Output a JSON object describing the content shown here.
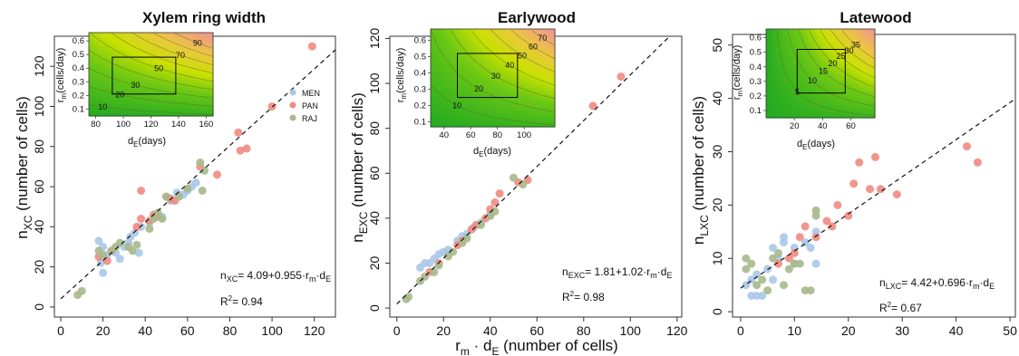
{
  "chart_data": [
    {
      "type": "scatter",
      "title": "Xylem ring width",
      "xlabel": "",
      "ylabel": "n_XC (number of cells)",
      "xlim": [
        -3,
        130
      ],
      "ylim": [
        -5,
        135
      ],
      "xticks": [
        0,
        20,
        40,
        60,
        80,
        100,
        120
      ],
      "yticks": [
        0,
        20,
        40,
        60,
        80,
        100,
        120
      ],
      "ylabel_main": "n",
      "ylabel_sub": "XC",
      "ylabel_rest": " (number of cells)",
      "fit": {
        "intercept": 4.09,
        "slope": 0.955
      },
      "equation": {
        "lhs": "n",
        "lhs_sub": "XC",
        "body": "= 4.09+0.955·r",
        "m": "m",
        "dot": "·d",
        "e": "E"
      },
      "r2": "= 0.94",
      "legend": [
        "MEN",
        "PAN",
        "RAJ"
      ],
      "legend_position": "inside-top-right",
      "series": [
        {
          "name": "MEN",
          "points": [
            [
              18,
              33
            ],
            [
              20,
              30
            ],
            [
              19,
              22
            ],
            [
              20,
              17
            ],
            [
              22,
              26
            ],
            [
              26,
              27
            ],
            [
              28,
              24
            ],
            [
              30,
              30
            ],
            [
              32,
              32
            ],
            [
              33,
              35
            ],
            [
              35,
              37
            ],
            [
              37,
              27
            ],
            [
              38,
              40
            ],
            [
              42,
              42
            ],
            [
              45,
              46
            ],
            [
              48,
              45
            ],
            [
              52,
              53
            ],
            [
              55,
              57
            ],
            [
              58,
              56
            ],
            [
              60,
              58
            ],
            [
              62,
              60
            ],
            [
              64,
              62
            ]
          ]
        },
        {
          "name": "PAN",
          "points": [
            [
              18,
              25
            ],
            [
              22,
              23
            ],
            [
              24,
              28
            ],
            [
              36,
              40
            ],
            [
              38,
              44
            ],
            [
              38,
              58
            ],
            [
              42,
              43
            ],
            [
              44,
              46
            ],
            [
              46,
              45
            ],
            [
              50,
              55
            ],
            [
              52,
              54
            ],
            [
              54,
              53
            ],
            [
              66,
              70
            ],
            [
              74,
              66
            ],
            [
              84,
              87
            ],
            [
              85,
              78
            ],
            [
              88,
              79
            ],
            [
              100,
              100
            ],
            [
              119,
              130
            ]
          ]
        },
        {
          "name": "RAJ",
          "points": [
            [
              8,
              6
            ],
            [
              10,
              8
            ],
            [
              18,
              28
            ],
            [
              20,
              26
            ],
            [
              24,
              28
            ],
            [
              26,
              30
            ],
            [
              28,
              32
            ],
            [
              32,
              30
            ],
            [
              34,
              28
            ],
            [
              36,
              31
            ],
            [
              42,
              39
            ],
            [
              44,
              44
            ],
            [
              46,
              47
            ],
            [
              48,
              44
            ],
            [
              50,
              55
            ],
            [
              56,
              55
            ],
            [
              60,
              59
            ],
            [
              66,
              72
            ],
            [
              67,
              58
            ],
            [
              68,
              68
            ]
          ]
        }
      ],
      "inset": {
        "xlabel_main": "d",
        "xlabel_sub": "E",
        "xlabel_rest": "(days)",
        "ylabel_main": "r",
        "ylabel_sub": "m",
        "ylabel_rest": "(cells/day)",
        "xlim": [
          75,
          165
        ],
        "ylim": [
          0.05,
          0.66
        ],
        "xticks": [
          80,
          100,
          120,
          140,
          160
        ],
        "yticks": [
          0.1,
          0.2,
          0.3,
          0.4,
          0.5,
          0.6
        ],
        "contours": [
          10,
          20,
          30,
          40,
          50,
          60,
          70,
          80,
          90
        ],
        "contour_labels": [
          "10",
          "20",
          "30",
          "50",
          "70",
          "90"
        ],
        "box": {
          "x": [
            92,
            138
          ],
          "y": [
            0.21,
            0.48
          ]
        }
      }
    },
    {
      "type": "scatter",
      "title": "Earlywood",
      "xlabel": "r_m · d_E (number of cells)",
      "ylabel": "n_EXC (number of cells)",
      "xlim": [
        -3,
        122
      ],
      "ylim": [
        -4,
        121
      ],
      "xticks": [
        0,
        20,
        40,
        60,
        80,
        100,
        120
      ],
      "yticks": [
        0,
        20,
        40,
        60,
        80,
        100,
        120
      ],
      "ylabel_main": "n",
      "ylabel_sub": "EXC",
      "ylabel_rest": " (number of cells)",
      "xlabel_main": "r",
      "xlabel_m": "m",
      "xlabel_mid": " · d",
      "xlabel_E": "E",
      "xlabel_rest": " (number of cells)",
      "fit": {
        "intercept": 1.81,
        "slope": 1.02
      },
      "equation": {
        "lhs": "n",
        "lhs_sub": "EXC",
        "body": "= 1.81+1.02·r",
        "m": "m",
        "dot": "·d",
        "e": "E"
      },
      "r2": "= 0.98",
      "series": [
        {
          "name": "MEN",
          "points": [
            [
              10,
              18
            ],
            [
              12,
              20
            ],
            [
              14,
              20
            ],
            [
              16,
              22
            ],
            [
              18,
              24
            ],
            [
              20,
              25
            ],
            [
              22,
              26
            ],
            [
              26,
              30
            ],
            [
              28,
              32
            ],
            [
              30,
              33
            ],
            [
              33,
              36
            ],
            [
              36,
              38
            ],
            [
              40,
              42
            ]
          ]
        },
        {
          "name": "PAN",
          "points": [
            [
              14,
              16
            ],
            [
              18,
              20
            ],
            [
              26,
              28
            ],
            [
              28,
              30
            ],
            [
              32,
              35
            ],
            [
              34,
              37
            ],
            [
              38,
              40
            ],
            [
              40,
              44
            ],
            [
              42,
              47
            ],
            [
              44,
              51
            ],
            [
              52,
              56
            ],
            [
              56,
              57
            ],
            [
              84,
              90
            ],
            [
              96,
              103
            ]
          ]
        },
        {
          "name": "RAJ",
          "points": [
            [
              4,
              4
            ],
            [
              5,
              5
            ],
            [
              10,
              12
            ],
            [
              12,
              14
            ],
            [
              16,
              16
            ],
            [
              18,
              19
            ],
            [
              22,
              23
            ],
            [
              24,
              25
            ],
            [
              28,
              29
            ],
            [
              30,
              31
            ],
            [
              36,
              37
            ],
            [
              40,
              41
            ],
            [
              42,
              43
            ],
            [
              50,
              58
            ],
            [
              54,
              55
            ]
          ]
        }
      ],
      "inset": {
        "xlabel_main": "d",
        "xlabel_sub": "E",
        "xlabel_rest": "(days)",
        "ylabel_main": "r",
        "ylabel_sub": "m",
        "ylabel_rest": "(cells/day)",
        "xlim": [
          30,
          123
        ],
        "ylim": [
          0.07,
          0.67
        ],
        "xticks": [
          40,
          60,
          80,
          100
        ],
        "yticks": [
          0.1,
          0.2,
          0.3,
          0.4,
          0.5,
          0.6
        ],
        "contours": [
          10,
          20,
          30,
          40,
          50,
          60,
          70
        ],
        "contour_labels": [
          "10",
          "20",
          "30",
          "40",
          "50",
          "60",
          "70"
        ],
        "box": {
          "x": [
            50,
            95
          ],
          "y": [
            0.25,
            0.52
          ]
        }
      }
    },
    {
      "type": "scatter",
      "title": "Latewood",
      "xlabel": "",
      "ylabel": "n_LXC (number of cells)",
      "xlim": [
        -1.5,
        51
      ],
      "ylim": [
        -1,
        52
      ],
      "xticks": [
        0,
        10,
        20,
        30,
        40,
        50
      ],
      "yticks": [
        0,
        10,
        20,
        30,
        40,
        50
      ],
      "ylabel_main": "n",
      "ylabel_sub": "LXC",
      "ylabel_rest": " (number of cells)",
      "fit": {
        "intercept": 4.42,
        "slope": 0.696
      },
      "equation": {
        "lhs": "n",
        "lhs_sub": "LXC",
        "body": "= 4.42+0.696·r",
        "m": "m",
        "dot": "·d",
        "e": "E"
      },
      "r2": "= 0.67",
      "series": [
        {
          "name": "MEN",
          "points": [
            [
              1,
              5
            ],
            [
              2,
              3
            ],
            [
              2,
              6
            ],
            [
              3,
              3
            ],
            [
              3,
              7
            ],
            [
              4,
              3
            ],
            [
              5,
              8
            ],
            [
              6,
              6
            ],
            [
              6,
              12
            ],
            [
              7,
              10
            ],
            [
              8,
              13
            ],
            [
              8,
              14
            ],
            [
              10,
              9
            ],
            [
              10,
              12
            ],
            [
              12,
              13
            ],
            [
              13,
              12
            ],
            [
              14,
              9
            ],
            [
              14,
              15
            ]
          ]
        },
        {
          "name": "PAN",
          "points": [
            [
              7,
              9
            ],
            [
              9,
              10
            ],
            [
              10,
              11
            ],
            [
              11,
              14
            ],
            [
              12,
              16
            ],
            [
              14,
              14
            ],
            [
              16,
              17
            ],
            [
              17,
              16
            ],
            [
              18,
              20
            ],
            [
              20,
              18
            ],
            [
              21,
              24
            ],
            [
              22,
              28
            ],
            [
              24,
              23
            ],
            [
              25,
              29
            ],
            [
              26,
              23
            ],
            [
              29,
              22
            ],
            [
              42,
              31
            ],
            [
              44,
              28
            ]
          ]
        },
        {
          "name": "RAJ",
          "points": [
            [
              1,
              10
            ],
            [
              1,
              8
            ],
            [
              2,
              9
            ],
            [
              3,
              5
            ],
            [
              4,
              6
            ],
            [
              5,
              4
            ],
            [
              6,
              10
            ],
            [
              7,
              11
            ],
            [
              8,
              5
            ],
            [
              9,
              8
            ],
            [
              10,
              9
            ],
            [
              11,
              9
            ],
            [
              12,
              4
            ],
            [
              13,
              4
            ],
            [
              14,
              18
            ],
            [
              14,
              19
            ]
          ]
        }
      ],
      "inset": {
        "xlabel_main": "d",
        "xlabel_sub": "E",
        "xlabel_rest": "(days)",
        "ylabel_main": "r",
        "ylabel_sub": "m",
        "ylabel_rest": "(cells/day)",
        "xlim": [
          0,
          77
        ],
        "ylim": [
          0.05,
          0.66
        ],
        "xticks": [
          20,
          40,
          60
        ],
        "yticks": [
          0.1,
          0.2,
          0.3,
          0.4,
          0.5,
          0.6
        ],
        "contours": [
          5,
          10,
          15,
          20,
          25,
          30,
          35
        ],
        "contour_labels": [
          "5",
          "10",
          "15",
          "20",
          "25",
          "30",
          "35"
        ],
        "box": {
          "x": [
            22,
            56
          ],
          "y": [
            0.22,
            0.52
          ]
        }
      }
    }
  ],
  "colors": {
    "MEN": "#a9c8e8",
    "PAN": "#f28a80",
    "RAJ": "#a7b98b",
    "fit": "#111111",
    "axis": "#333333"
  }
}
